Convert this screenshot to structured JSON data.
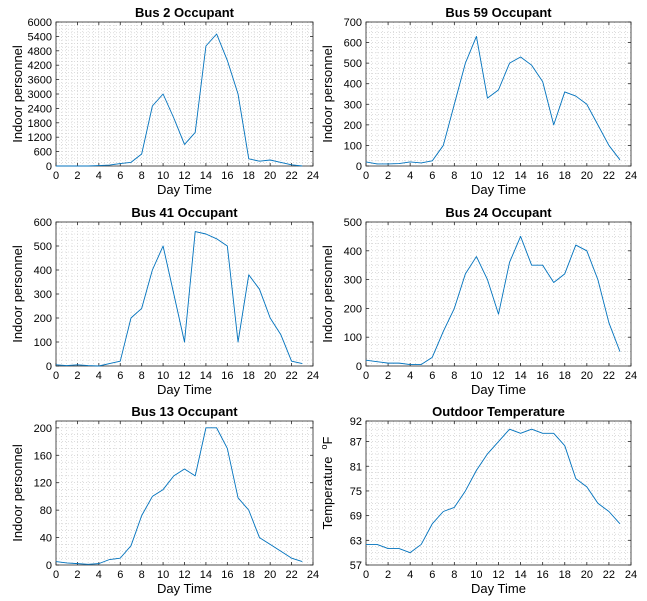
{
  "chart_data": [
    {
      "type": "line",
      "title": "Bus 2 Occupant",
      "xlabel": "Day Time",
      "ylabel": "Indoor personnel",
      "xlim": [
        0,
        24
      ],
      "ylim": [
        0,
        6000
      ],
      "xticks": [
        0,
        2,
        4,
        6,
        8,
        10,
        12,
        14,
        16,
        18,
        20,
        22,
        24
      ],
      "yticks": [
        0,
        600,
        1200,
        1800,
        2400,
        3000,
        3600,
        4200,
        4800,
        5400,
        6000
      ],
      "grid": "minor-dotted",
      "color": "#0072BD",
      "x": [
        0,
        1,
        2,
        3,
        4,
        5,
        6,
        7,
        8,
        9,
        10,
        11,
        12,
        13,
        14,
        15,
        16,
        17,
        18,
        19,
        20,
        21,
        22,
        23
      ],
      "y": [
        0,
        0,
        0,
        0,
        20,
        40,
        100,
        150,
        500,
        2500,
        3000,
        2000,
        900,
        1400,
        5000,
        5500,
        4400,
        3000,
        300,
        200,
        250,
        150,
        50,
        0
      ]
    },
    {
      "type": "line",
      "title": "Bus 59 Occupant",
      "xlabel": "Day Time",
      "ylabel": "Indoor personnel",
      "xlim": [
        0,
        24
      ],
      "ylim": [
        0,
        700
      ],
      "xticks": [
        0,
        2,
        4,
        6,
        8,
        10,
        12,
        14,
        16,
        18,
        20,
        22,
        24
      ],
      "yticks": [
        0,
        100,
        200,
        300,
        400,
        500,
        600,
        700
      ],
      "grid": "minor-dotted",
      "color": "#0072BD",
      "x": [
        0,
        1,
        2,
        3,
        4,
        5,
        6,
        7,
        8,
        9,
        10,
        11,
        12,
        13,
        14,
        15,
        16,
        17,
        18,
        19,
        20,
        21,
        22,
        23
      ],
      "y": [
        20,
        10,
        10,
        12,
        20,
        15,
        25,
        100,
        300,
        500,
        630,
        330,
        370,
        500,
        530,
        490,
        410,
        200,
        360,
        340,
        300,
        200,
        100,
        30
      ]
    },
    {
      "type": "line",
      "title": "Bus 41 Occupant",
      "xlabel": "Day Time",
      "ylabel": "Indoor personnel",
      "xlim": [
        0,
        24
      ],
      "ylim": [
        0,
        600
      ],
      "xticks": [
        0,
        2,
        4,
        6,
        8,
        10,
        12,
        14,
        16,
        18,
        20,
        22,
        24
      ],
      "yticks": [
        0,
        100,
        200,
        300,
        400,
        500,
        600
      ],
      "grid": "minor-dotted",
      "color": "#0072BD",
      "x": [
        0,
        1,
        2,
        3,
        4,
        5,
        6,
        7,
        8,
        9,
        10,
        11,
        12,
        13,
        14,
        15,
        16,
        17,
        18,
        19,
        20,
        21,
        22,
        23
      ],
      "y": [
        5,
        2,
        5,
        2,
        0,
        10,
        20,
        200,
        240,
        400,
        500,
        300,
        100,
        560,
        550,
        530,
        500,
        100,
        380,
        320,
        200,
        130,
        20,
        10
      ]
    },
    {
      "type": "line",
      "title": "Bus 24 Occupant",
      "xlabel": "Day Time",
      "ylabel": "Indoor personnel",
      "xlim": [
        0,
        24
      ],
      "ylim": [
        0,
        500
      ],
      "xticks": [
        0,
        2,
        4,
        6,
        8,
        10,
        12,
        14,
        16,
        18,
        20,
        22,
        24
      ],
      "yticks": [
        0,
        100,
        200,
        300,
        400,
        500
      ],
      "grid": "minor-dotted",
      "color": "#0072BD",
      "x": [
        0,
        1,
        2,
        3,
        4,
        5,
        6,
        7,
        8,
        9,
        10,
        11,
        12,
        13,
        14,
        15,
        16,
        17,
        18,
        19,
        20,
        21,
        22,
        23
      ],
      "y": [
        20,
        15,
        10,
        10,
        5,
        5,
        30,
        120,
        200,
        320,
        380,
        300,
        180,
        360,
        450,
        350,
        350,
        290,
        320,
        420,
        400,
        300,
        150,
        50
      ]
    },
    {
      "type": "line",
      "title": "Bus 13 Occupant",
      "xlabel": "Day Time",
      "ylabel": "Indoor personnel",
      "xlim": [
        0,
        24
      ],
      "ylim": [
        0,
        210
      ],
      "xticks": [
        0,
        2,
        4,
        6,
        8,
        10,
        12,
        14,
        16,
        18,
        20,
        22,
        24
      ],
      "yticks": [
        0,
        40,
        80,
        120,
        160,
        200
      ],
      "grid": "minor-dotted",
      "color": "#0072BD",
      "x": [
        0,
        1,
        2,
        3,
        4,
        5,
        6,
        7,
        8,
        9,
        10,
        11,
        12,
        13,
        14,
        15,
        16,
        17,
        18,
        19,
        20,
        21,
        22,
        23
      ],
      "y": [
        5,
        3,
        2,
        1,
        2,
        8,
        10,
        28,
        72,
        100,
        110,
        130,
        140,
        130,
        200,
        200,
        170,
        98,
        80,
        40,
        30,
        20,
        10,
        5
      ]
    },
    {
      "type": "line",
      "title": "Outdoor Temperature",
      "xlabel": "Day Time",
      "ylabel": "Temperature",
      "unit_label": "oF",
      "xlim": [
        0,
        24
      ],
      "ylim": [
        57,
        92
      ],
      "xticks": [
        0,
        2,
        4,
        6,
        8,
        10,
        12,
        14,
        16,
        18,
        20,
        22,
        24
      ],
      "yticks": [
        57,
        63,
        69,
        75,
        81,
        87,
        92
      ],
      "grid": "minor-dotted",
      "color": "#0072BD",
      "x": [
        0,
        1,
        2,
        3,
        4,
        5,
        6,
        7,
        8,
        9,
        10,
        11,
        12,
        13,
        14,
        15,
        16,
        17,
        18,
        19,
        20,
        21,
        22,
        23
      ],
      "y": [
        62,
        62,
        61,
        61,
        60,
        62,
        67,
        70,
        71,
        75,
        80,
        84,
        87,
        90,
        89,
        90,
        89,
        89,
        86,
        78,
        76,
        72,
        70,
        67
      ]
    }
  ]
}
